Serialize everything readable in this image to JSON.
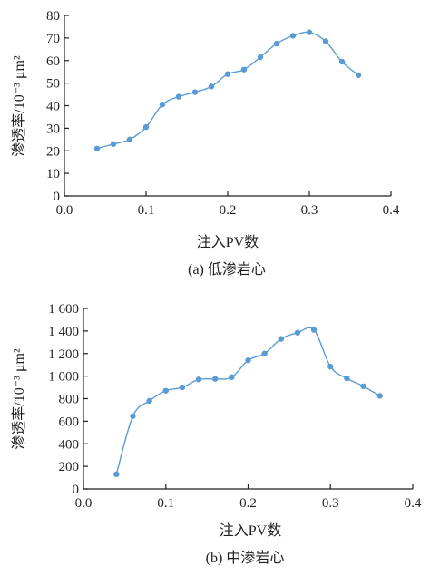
{
  "colors": {
    "series": "#5b9bd5",
    "axis": "#231f20"
  },
  "chart_data": [
    {
      "type": "line",
      "caption": "(a) 低渗岩心",
      "xlabel": "注入PV数",
      "ylabel": "渗透率/10⁻³ μm²",
      "xlim": [
        0.0,
        0.4
      ],
      "ylim": [
        0,
        80
      ],
      "xticks": [
        "0.0",
        "0.1",
        "0.2",
        "0.3",
        "0.4"
      ],
      "yticks": [
        "0",
        "10",
        "20",
        "30",
        "40",
        "50",
        "60",
        "70",
        "80"
      ],
      "grid": false,
      "series": [
        {
          "x": [
            0.04,
            0.06,
            0.08,
            0.1,
            0.12,
            0.14,
            0.16,
            0.18,
            0.2,
            0.22,
            0.24,
            0.26,
            0.28,
            0.3,
            0.32,
            0.34,
            0.36
          ],
          "y": [
            21,
            23,
            25,
            30.5,
            40.5,
            44,
            46,
            48.5,
            54,
            56,
            61.5,
            67.5,
            71,
            72.5,
            68.5,
            59.5,
            53.5
          ]
        }
      ]
    },
    {
      "type": "line",
      "caption": "(b) 中渗岩心",
      "xlabel": "注入PV数",
      "ylabel": "渗透率/10⁻³ μm²",
      "xlim": [
        0.0,
        0.4
      ],
      "ylim": [
        0,
        1600
      ],
      "xticks": [
        "0.0",
        "0.1",
        "0.2",
        "0.3",
        "0.4"
      ],
      "yticks": [
        "0",
        "200",
        "400",
        "600",
        "800",
        "1 000",
        "1 200",
        "1 400",
        "1 600"
      ],
      "grid": false,
      "series": [
        {
          "x": [
            0.04,
            0.06,
            0.08,
            0.1,
            0.12,
            0.14,
            0.16,
            0.18,
            0.2,
            0.22,
            0.24,
            0.26,
            0.28,
            0.3,
            0.32,
            0.34,
            0.36
          ],
          "y": [
            130,
            645,
            780,
            870,
            900,
            970,
            975,
            990,
            1140,
            1200,
            1330,
            1385,
            1410,
            1085,
            980,
            910,
            825
          ]
        }
      ]
    }
  ]
}
